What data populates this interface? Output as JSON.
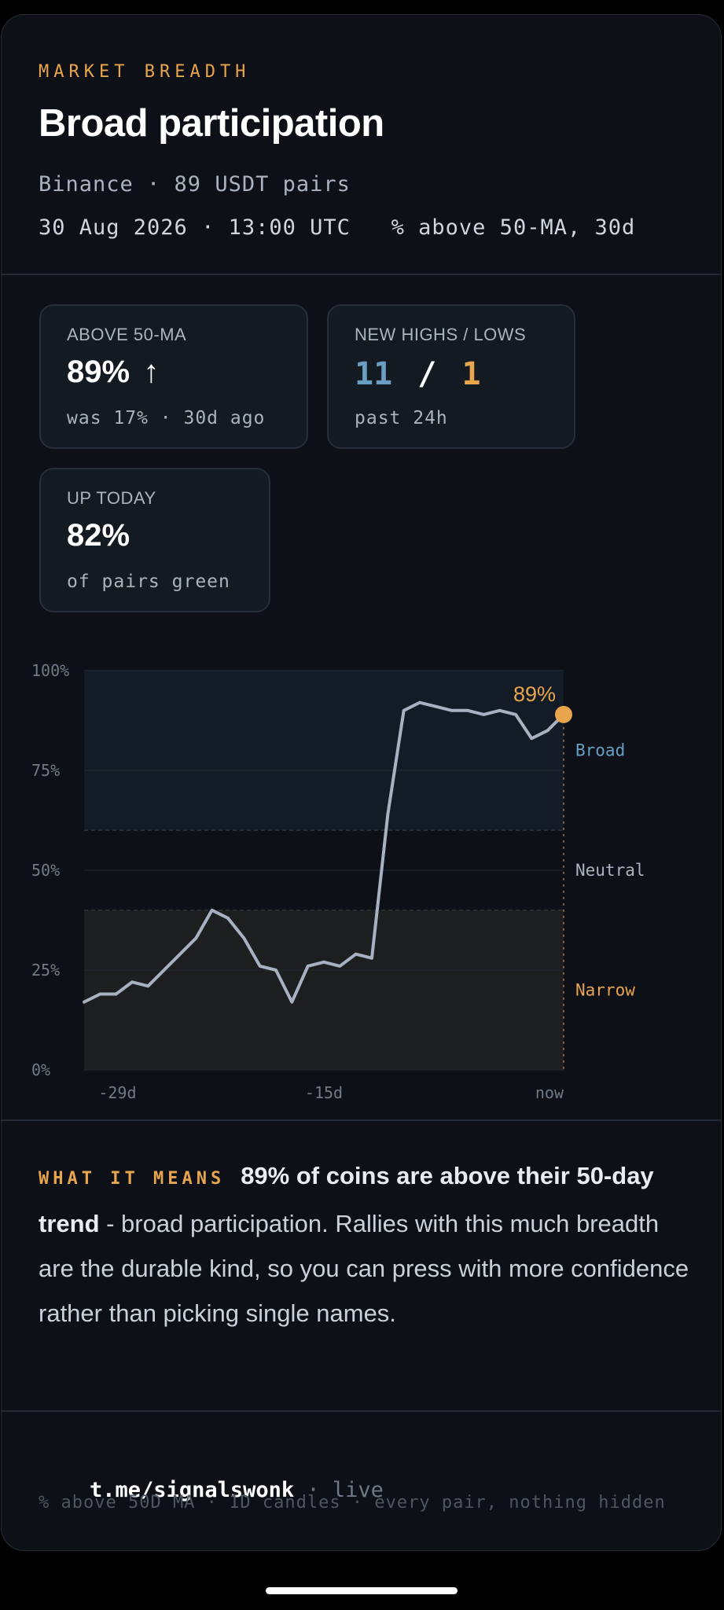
{
  "header": {
    "eyebrow": "MARKET BREADTH",
    "title": "Broad participation",
    "meta_line1": "Binance · 89 USDT pairs",
    "meta_line2": "30 Aug 2026 · 13:00 UTC   % above 50-MA, 30d"
  },
  "stats": {
    "above_ma": {
      "label": "ABOVE 50-MA",
      "value": "89%",
      "arrow": "↑",
      "sub": "was 17% · 30d ago"
    },
    "highs_lows": {
      "label": "NEW HIGHS / LOWS",
      "highs": "11",
      "sep": "/",
      "lows": "1",
      "sub": "past 24h"
    },
    "up_today": {
      "label": "UP TODAY",
      "value": "82%",
      "sub": "of pairs green"
    }
  },
  "chart_data": {
    "type": "line",
    "y_ticks": [
      "100%",
      "75%",
      "50%",
      "25%",
      "0%"
    ],
    "x_ticks": [
      "-29d",
      "-15d",
      "now"
    ],
    "ylim": [
      0,
      100
    ],
    "xlim": [
      -30,
      0
    ],
    "x": [
      -30,
      -29,
      -28,
      -27,
      -26,
      -25,
      -24,
      -23,
      -22,
      -21,
      -20,
      -19,
      -18,
      -17,
      -16,
      -15,
      -14,
      -13,
      -12,
      -11,
      -10,
      -9,
      -8,
      -7,
      -6,
      -5,
      -4,
      -3,
      -2,
      -1,
      0
    ],
    "values": [
      17,
      19,
      19,
      22,
      21,
      25,
      29,
      33,
      40,
      38,
      33,
      26,
      25,
      17,
      26,
      27,
      26,
      29,
      28,
      64,
      90,
      92,
      91,
      90,
      90,
      89,
      90,
      89,
      83,
      85,
      89
    ],
    "bands": [
      {
        "name": "Broad",
        "from": 60,
        "to": 100,
        "color": "#131c26"
      },
      {
        "name": "Neutral",
        "from": 40,
        "to": 60,
        "color": "#0d1117"
      },
      {
        "name": "Narrow",
        "from": 0,
        "to": 40,
        "color": "#1d1e20"
      }
    ],
    "band_labels": [
      {
        "text": "Broad",
        "color": "#6a9ec2"
      },
      {
        "text": "Neutral",
        "color": "#aab3bf"
      },
      {
        "text": "Narrow",
        "color": "#e8a54e"
      }
    ],
    "current_label": "89%",
    "line_color": "#a7b1c2",
    "marker_color": "#e8a54e"
  },
  "means": {
    "tag": "WHAT IT MEANS",
    "bold": "89% of coins are above their 50-day trend",
    "text": " - broad participation. Rallies with this much breadth are the durable kind, so you can press with more confidence rather than picking single names."
  },
  "footer": {
    "link": "t.me/signalswonk",
    "sep": " · ",
    "live": "live",
    "note": "% above 50D MA · 1D candles · every pair, nothing hidden"
  }
}
